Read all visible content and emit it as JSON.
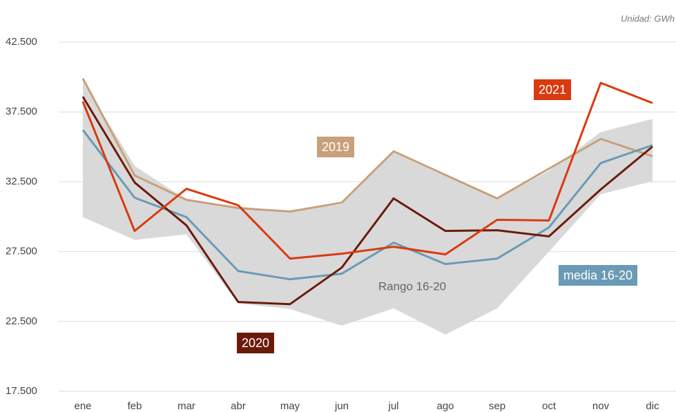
{
  "chart_data": {
    "type": "line",
    "unit_note": "Unidad: GWh",
    "categories": [
      "ene",
      "feb",
      "mar",
      "abr",
      "may",
      "jun",
      "jul",
      "ago",
      "sep",
      "oct",
      "nov",
      "dic"
    ],
    "band": {
      "name": "Rango 16-20",
      "color": "#d9d9d9",
      "upper": [
        39730,
        33640,
        31210,
        30720,
        30370,
        30910,
        34580,
        32900,
        31260,
        33290,
        36060,
        37000
      ],
      "lower": [
        29970,
        28340,
        28740,
        23790,
        23390,
        22200,
        23440,
        21560,
        23440,
        27500,
        31610,
        32540
      ]
    },
    "series": [
      {
        "name": "2019",
        "color": "#c8a07a",
        "values": [
          39900,
          32950,
          31210,
          30620,
          30370,
          31010,
          34680,
          32990,
          31310,
          33440,
          35570,
          34330
        ]
      },
      {
        "name": "media 16-20",
        "color": "#6a9ab5",
        "values": [
          36210,
          31360,
          29970,
          26110,
          25520,
          25920,
          28140,
          26610,
          27000,
          29230,
          33840,
          35120
        ]
      },
      {
        "name": "2020",
        "color": "#6b1a0a",
        "values": [
          38590,
          32450,
          29380,
          23890,
          23740,
          26360,
          31310,
          28980,
          29030,
          28590,
          31950,
          35020
        ]
      },
      {
        "name": "2021",
        "color": "#d93a0f",
        "values": [
          38240,
          28980,
          32000,
          30820,
          27000,
          27350,
          27850,
          27300,
          29780,
          29730,
          39580,
          38140
        ]
      }
    ],
    "ylim": [
      17500,
      42500
    ],
    "yticks": [
      {
        "value": 17500,
        "label": "17.500"
      },
      {
        "value": 22500,
        "label": "22.500"
      },
      {
        "value": 27500,
        "label": "27.500"
      },
      {
        "value": 32500,
        "label": "32.500"
      },
      {
        "value": 37500,
        "label": "37.500"
      },
      {
        "value": 42500,
        "label": "42.500"
      }
    ],
    "grid": true
  }
}
